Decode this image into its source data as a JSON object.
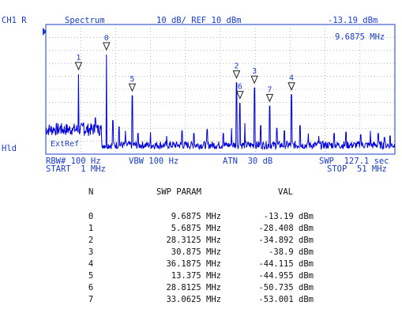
{
  "header": {
    "channel": "CH1 R",
    "mode": "Spectrum",
    "scale": "10 dB/ REF 10 dBm",
    "marker_value": "-13.19 dBm",
    "marker_freq": "9.6875 MHz"
  },
  "left_labels": {
    "hld": "Hld",
    "extref": "ExtRef"
  },
  "footer": {
    "rbw": "RBW# 100 Hz",
    "vbw": "VBW 100 Hz",
    "atn": "ATN  30 dB",
    "swp": "SWP  127.1 sec",
    "start": "START  1 MHz",
    "stop": "STOP  51 MHz"
  },
  "colors": {
    "trace": "#0000dd",
    "frame": "#1a3ccc",
    "grid": "#888888"
  },
  "chart_data": {
    "type": "line",
    "x_range_mhz": [
      1,
      51
    ],
    "ref_level_dbm": 10,
    "db_per_div": 10,
    "y_range_dbm": [
      -90,
      10
    ],
    "grid": true,
    "markers": [
      {
        "label": "0",
        "freq_mhz": 9.6875,
        "level_dbm": -13.19
      },
      {
        "label": "1",
        "freq_mhz": 5.6875,
        "level_dbm": -28.408
      },
      {
        "label": "2",
        "freq_mhz": 28.3125,
        "level_dbm": -34.892
      },
      {
        "label": "3",
        "freq_mhz": 30.875,
        "level_dbm": -38.9
      },
      {
        "label": "4",
        "freq_mhz": 36.1875,
        "level_dbm": -44.115
      },
      {
        "label": "5",
        "freq_mhz": 13.375,
        "level_dbm": -44.955
      },
      {
        "label": "6",
        "freq_mhz": 28.8125,
        "level_dbm": -50.735
      },
      {
        "label": "7",
        "freq_mhz": 33.0625,
        "level_dbm": -53.001
      }
    ]
  },
  "table": {
    "headers": {
      "n": "N",
      "param": "SWP PARAM",
      "val": "VAL"
    },
    "rows": [
      {
        "n": "0",
        "param": "9.6875 MHz",
        "val": "-13.19 dBm"
      },
      {
        "n": "1",
        "param": "5.6875 MHz",
        "val": "-28.408 dBm"
      },
      {
        "n": "2",
        "param": "28.3125 MHz",
        "val": "-34.892 dBm"
      },
      {
        "n": "3",
        "param": "30.875 MHz",
        "val": "-38.9 dBm"
      },
      {
        "n": "4",
        "param": "36.1875 MHz",
        "val": "-44.115 dBm"
      },
      {
        "n": "5",
        "param": "13.375 MHz",
        "val": "-44.955 dBm"
      },
      {
        "n": "6",
        "param": "28.8125 MHz",
        "val": "-50.735 dBm"
      },
      {
        "n": "7",
        "param": "33.0625 MHz",
        "val": "-53.001 dBm"
      }
    ]
  }
}
